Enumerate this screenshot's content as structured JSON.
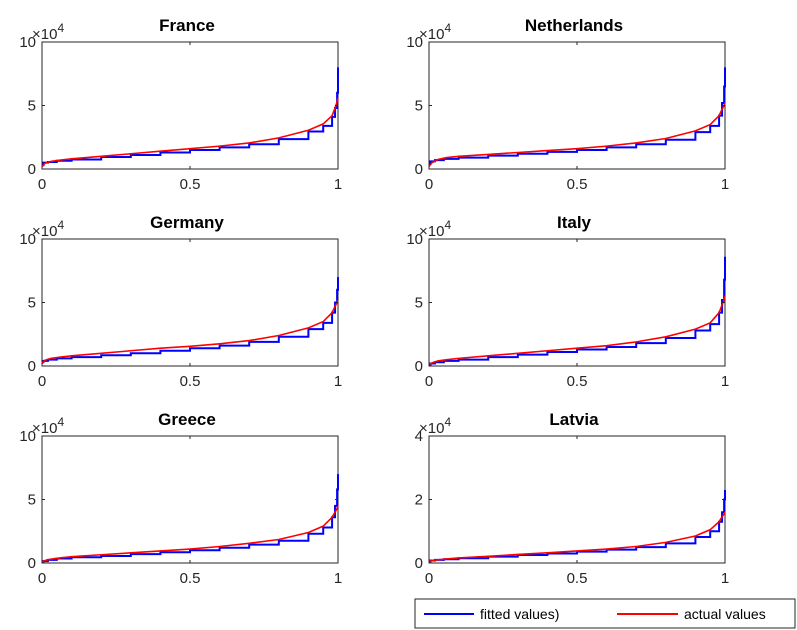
{
  "colors": {
    "fitted": "#0000ff",
    "actual": "#ff0000",
    "axis": "#262626"
  },
  "legend": {
    "placement": "bottom-right",
    "fitted_label": "fitted values)",
    "actual_label": "actual values"
  },
  "chart_data": [
    {
      "type": "line",
      "title": "France",
      "multiplier_base": "10",
      "multiplier_exp": "4",
      "xlim": [
        0,
        1
      ],
      "ylim": [
        0,
        10
      ],
      "xticks": [
        "0",
        "0.5",
        "1"
      ],
      "yticks": [
        "0",
        "5",
        "10"
      ],
      "series": [
        {
          "name": "fitted values)",
          "style": "step",
          "x": [
            0,
            0.005,
            0.02,
            0.05,
            0.1,
            0.2,
            0.3,
            0.4,
            0.5,
            0.6,
            0.7,
            0.8,
            0.9,
            0.95,
            0.98,
            0.99,
            0.997,
            1
          ],
          "y": [
            0.3,
            0.5,
            0.55,
            0.65,
            0.75,
            0.95,
            1.1,
            1.3,
            1.5,
            1.7,
            1.95,
            2.35,
            2.95,
            3.4,
            4.1,
            4.8,
            6.0,
            8.0
          ]
        },
        {
          "name": "actual values",
          "style": "line",
          "x": [
            0,
            0.01,
            0.03,
            0.06,
            0.1,
            0.2,
            0.3,
            0.4,
            0.5,
            0.6,
            0.7,
            0.8,
            0.9,
            0.95,
            0.98,
            0.99,
            0.997,
            1
          ],
          "y": [
            0.2,
            0.45,
            0.6,
            0.7,
            0.8,
            1.0,
            1.2,
            1.4,
            1.6,
            1.8,
            2.05,
            2.45,
            3.05,
            3.55,
            4.2,
            4.8,
            5.3,
            5.6
          ]
        }
      ]
    },
    {
      "type": "line",
      "title": "Netherlands",
      "multiplier_base": "10",
      "multiplier_exp": "4",
      "xlim": [
        0,
        1
      ],
      "ylim": [
        0,
        10
      ],
      "xticks": [
        "0",
        "0.5",
        "1"
      ],
      "yticks": [
        "0",
        "5",
        "10"
      ],
      "series": [
        {
          "name": "fitted values)",
          "style": "step",
          "x": [
            0,
            0.005,
            0.02,
            0.05,
            0.1,
            0.2,
            0.3,
            0.4,
            0.5,
            0.6,
            0.7,
            0.8,
            0.9,
            0.95,
            0.98,
            0.99,
            0.997,
            1
          ],
          "y": [
            0.4,
            0.6,
            0.7,
            0.8,
            0.9,
            1.05,
            1.2,
            1.35,
            1.5,
            1.7,
            1.95,
            2.3,
            2.9,
            3.4,
            4.2,
            5.2,
            6.5,
            8.0
          ]
        },
        {
          "name": "actual values",
          "style": "line",
          "x": [
            0,
            0.01,
            0.03,
            0.06,
            0.1,
            0.2,
            0.3,
            0.4,
            0.5,
            0.6,
            0.7,
            0.8,
            0.9,
            0.95,
            0.98,
            0.99,
            0.997,
            1
          ],
          "y": [
            0.2,
            0.5,
            0.75,
            0.9,
            1.0,
            1.15,
            1.3,
            1.45,
            1.6,
            1.8,
            2.05,
            2.4,
            3.0,
            3.5,
            4.2,
            4.7,
            5.0,
            5.2
          ]
        }
      ]
    },
    {
      "type": "line",
      "title": "Germany",
      "multiplier_base": "10",
      "multiplier_exp": "4",
      "xlim": [
        0,
        1
      ],
      "ylim": [
        0,
        10
      ],
      "xticks": [
        "0",
        "0.5",
        "1"
      ],
      "yticks": [
        "0",
        "5",
        "10"
      ],
      "series": [
        {
          "name": "fitted values)",
          "style": "step",
          "x": [
            0,
            0.005,
            0.02,
            0.05,
            0.1,
            0.2,
            0.3,
            0.4,
            0.5,
            0.6,
            0.7,
            0.8,
            0.9,
            0.95,
            0.98,
            0.99,
            0.997,
            1
          ],
          "y": [
            0.3,
            0.4,
            0.5,
            0.6,
            0.7,
            0.85,
            1.0,
            1.2,
            1.4,
            1.6,
            1.9,
            2.3,
            2.9,
            3.4,
            4.2,
            5.0,
            6.0,
            7.0
          ]
        },
        {
          "name": "actual values",
          "style": "line",
          "x": [
            0,
            0.01,
            0.03,
            0.06,
            0.1,
            0.2,
            0.3,
            0.4,
            0.5,
            0.6,
            0.7,
            0.8,
            0.9,
            0.95,
            0.98,
            0.99,
            0.997,
            1
          ],
          "y": [
            0.2,
            0.45,
            0.6,
            0.7,
            0.8,
            1.0,
            1.2,
            1.4,
            1.55,
            1.75,
            2.0,
            2.4,
            3.0,
            3.5,
            4.2,
            4.7,
            5.0,
            5.2
          ]
        }
      ]
    },
    {
      "type": "line",
      "title": "Italy",
      "multiplier_base": "10",
      "multiplier_exp": "4",
      "xlim": [
        0,
        1
      ],
      "ylim": [
        0,
        10
      ],
      "xticks": [
        "0",
        "0.5",
        "1"
      ],
      "yticks": [
        "0",
        "5",
        "10"
      ],
      "series": [
        {
          "name": "fitted values)",
          "style": "step",
          "x": [
            0,
            0.005,
            0.02,
            0.05,
            0.1,
            0.2,
            0.3,
            0.4,
            0.5,
            0.6,
            0.7,
            0.8,
            0.9,
            0.95,
            0.98,
            0.99,
            0.997,
            1
          ],
          "y": [
            0.1,
            0.2,
            0.3,
            0.4,
            0.5,
            0.7,
            0.9,
            1.1,
            1.3,
            1.5,
            1.8,
            2.2,
            2.8,
            3.3,
            4.2,
            5.2,
            6.8,
            8.6
          ]
        },
        {
          "name": "actual values",
          "style": "line",
          "x": [
            0,
            0.01,
            0.03,
            0.06,
            0.1,
            0.2,
            0.3,
            0.4,
            0.5,
            0.6,
            0.7,
            0.8,
            0.9,
            0.95,
            0.98,
            0.99,
            0.997,
            1
          ],
          "y": [
            0.1,
            0.25,
            0.4,
            0.5,
            0.6,
            0.8,
            1.0,
            1.2,
            1.4,
            1.6,
            1.9,
            2.3,
            2.9,
            3.4,
            4.2,
            4.8,
            5.2,
            5.5
          ]
        }
      ]
    },
    {
      "type": "line",
      "title": "Greece",
      "multiplier_base": "10",
      "multiplier_exp": "4",
      "xlim": [
        0,
        1
      ],
      "ylim": [
        0,
        10
      ],
      "xticks": [
        "0",
        "0.5",
        "1"
      ],
      "yticks": [
        "0",
        "5",
        "10"
      ],
      "series": [
        {
          "name": "fitted values)",
          "style": "step",
          "x": [
            0,
            0.005,
            0.02,
            0.05,
            0.1,
            0.2,
            0.3,
            0.4,
            0.5,
            0.6,
            0.7,
            0.8,
            0.9,
            0.95,
            0.98,
            0.99,
            0.997,
            1
          ],
          "y": [
            0.1,
            0.15,
            0.25,
            0.35,
            0.45,
            0.55,
            0.7,
            0.85,
            1.0,
            1.2,
            1.45,
            1.75,
            2.3,
            2.8,
            3.6,
            4.5,
            5.8,
            7.0
          ]
        },
        {
          "name": "actual values",
          "style": "line",
          "x": [
            0,
            0.01,
            0.03,
            0.06,
            0.1,
            0.2,
            0.3,
            0.4,
            0.5,
            0.6,
            0.7,
            0.8,
            0.9,
            0.95,
            0.98,
            0.99,
            0.997,
            1
          ],
          "y": [
            0.05,
            0.2,
            0.3,
            0.4,
            0.5,
            0.65,
            0.8,
            0.95,
            1.1,
            1.3,
            1.55,
            1.85,
            2.4,
            2.9,
            3.6,
            4.0,
            4.3,
            4.5
          ]
        }
      ]
    },
    {
      "type": "line",
      "title": "Latvia",
      "multiplier_base": "10",
      "multiplier_exp": "4",
      "xlim": [
        0,
        1
      ],
      "ylim": [
        0,
        4
      ],
      "xticks": [
        "0",
        "0.5",
        "1"
      ],
      "yticks": [
        "0",
        "2",
        "4"
      ],
      "series": [
        {
          "name": "fitted values)",
          "style": "step",
          "x": [
            0,
            0.005,
            0.02,
            0.05,
            0.1,
            0.2,
            0.3,
            0.4,
            0.5,
            0.6,
            0.7,
            0.8,
            0.9,
            0.95,
            0.98,
            0.99,
            0.997,
            1
          ],
          "y": [
            0.05,
            0.08,
            0.1,
            0.12,
            0.15,
            0.2,
            0.25,
            0.3,
            0.36,
            0.42,
            0.5,
            0.62,
            0.82,
            1.0,
            1.3,
            1.6,
            2.0,
            2.3
          ]
        },
        {
          "name": "actual values",
          "style": "line",
          "x": [
            0,
            0.01,
            0.03,
            0.06,
            0.1,
            0.2,
            0.3,
            0.4,
            0.5,
            0.6,
            0.7,
            0.8,
            0.9,
            0.95,
            0.98,
            0.99,
            0.997,
            1
          ],
          "y": [
            0.05,
            0.08,
            0.1,
            0.13,
            0.16,
            0.21,
            0.27,
            0.32,
            0.38,
            0.44,
            0.52,
            0.65,
            0.85,
            1.05,
            1.3,
            1.45,
            1.55,
            1.6
          ]
        }
      ]
    }
  ]
}
